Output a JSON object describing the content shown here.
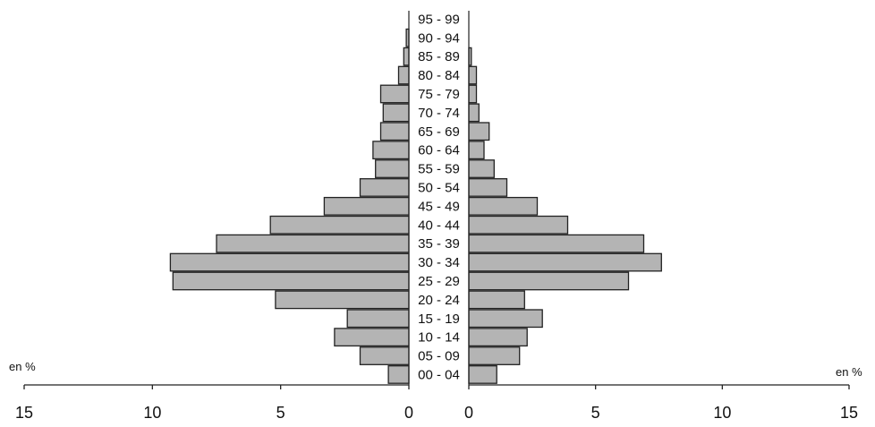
{
  "chart_data": {
    "type": "bar",
    "orientation": "horizontal",
    "subtype": "population-pyramid",
    "categories": [
      "00 - 04",
      "05 - 09",
      "10 - 14",
      "15 - 19",
      "20 - 24",
      "25 - 29",
      "30 - 34",
      "35 - 39",
      "40 - 44",
      "45 - 49",
      "50 - 54",
      "55 - 59",
      "60 - 64",
      "65 - 69",
      "70 - 74",
      "75 - 79",
      "80 - 84",
      "85 - 89",
      "90 - 94",
      "95 - 99"
    ],
    "series": [
      {
        "side": "left",
        "values": [
          0.8,
          1.9,
          2.9,
          2.4,
          5.2,
          9.2,
          9.3,
          7.5,
          5.4,
          3.3,
          1.9,
          1.3,
          1.4,
          1.1,
          1.0,
          1.1,
          0.4,
          0.2,
          0.1,
          0.0
        ]
      },
      {
        "side": "right",
        "values": [
          1.1,
          2.0,
          2.3,
          2.9,
          2.2,
          6.3,
          7.6,
          6.9,
          3.9,
          2.7,
          1.5,
          1.0,
          0.6,
          0.8,
          0.4,
          0.3,
          0.3,
          0.1,
          0.0,
          0.0
        ]
      }
    ],
    "xlim": [
      0,
      15
    ],
    "xticks": [
      0,
      5,
      10,
      15
    ],
    "xlabel_left": "en %",
    "xlabel_right": "en %",
    "grid": false,
    "legend": "none"
  }
}
